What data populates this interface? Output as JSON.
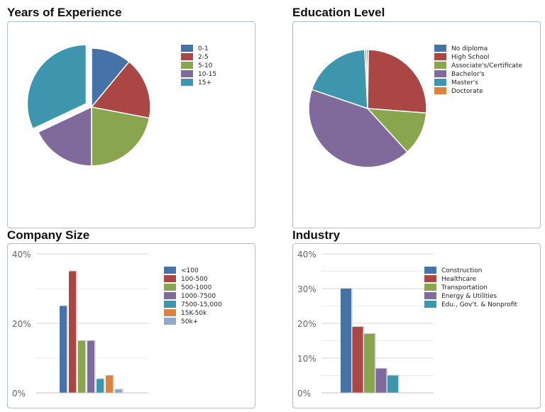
{
  "chart_data": [
    {
      "type": "pie",
      "title": "Years of Experience",
      "categories": [
        "0-1",
        "2-5",
        "5-10",
        "10-15",
        "15+"
      ],
      "values": [
        11,
        17,
        22,
        18,
        32
      ],
      "exploded": "15+",
      "colors": [
        "#4572a7",
        "#aa4643",
        "#89a54e",
        "#80699b",
        "#3d96ae"
      ],
      "legend_position": "top-right"
    },
    {
      "type": "pie",
      "title": "Education Level",
      "categories": [
        "No diploma",
        "High School",
        "Associate's/Certificate",
        "Bachelor's",
        "Master's",
        "Doctorate"
      ],
      "values": [
        0.5,
        26,
        12,
        42,
        19,
        0.5
      ],
      "colors": [
        "#4572a7",
        "#aa4643",
        "#89a54e",
        "#80699b",
        "#3d96ae",
        "#db843d"
      ],
      "legend_position": "top-right"
    },
    {
      "type": "bar",
      "title": "Company Size",
      "categories": [
        "<100",
        "100-500",
        "500-1000",
        "1000-7500",
        "7500-15,000",
        "15K-50k",
        "50k+"
      ],
      "values": [
        25,
        35,
        15,
        15,
        4,
        5,
        1
      ],
      "colors": [
        "#4572a7",
        "#aa4643",
        "#89a54e",
        "#80699b",
        "#3d96ae",
        "#db843d",
        "#92a8cd"
      ],
      "ylim": [
        0,
        40
      ],
      "yticks": [
        "0%",
        "20%",
        "40%"
      ],
      "legend_position": "top-right"
    },
    {
      "type": "bar",
      "title": "Industry",
      "categories": [
        "Construction",
        "Healthcare",
        "Transportation",
        "Energy & Utilities",
        "Edu., Gov't. & Nonprofit"
      ],
      "values": [
        30,
        19,
        17,
        7,
        5
      ],
      "colors": [
        "#4572a7",
        "#aa4643",
        "#89a54e",
        "#80699b",
        "#3d96ae"
      ],
      "ylim": [
        0,
        40
      ],
      "yticks": [
        "0%",
        "10%",
        "20%",
        "30%",
        "40%"
      ],
      "legend_position": "top-right"
    }
  ]
}
